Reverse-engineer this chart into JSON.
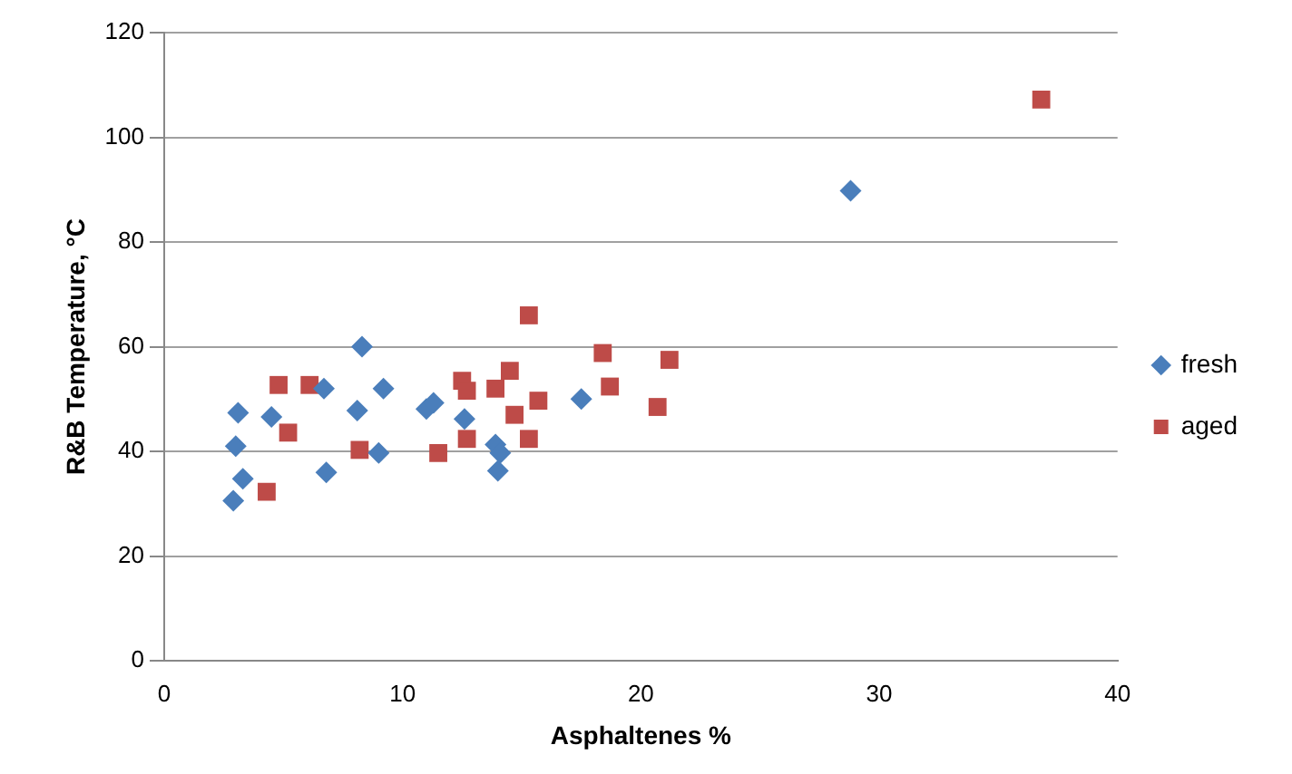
{
  "chart_data": {
    "type": "scatter",
    "xlabel": "Asphaltenes %",
    "ylabel": "R&B Temperature, °C",
    "xlim": [
      0,
      40
    ],
    "xticks": [
      0,
      10,
      20,
      30,
      40
    ],
    "ylim": [
      0,
      120
    ],
    "yticks": [
      0,
      20,
      40,
      60,
      80,
      100,
      120
    ],
    "grid": "y",
    "legend": "right",
    "series": [
      {
        "name": "fresh",
        "color": "#4a7ebb",
        "marker": "diamond",
        "x": [
          2.9,
          3.0,
          3.1,
          3.3,
          4.5,
          6.7,
          6.8,
          8.1,
          8.3,
          9.0,
          9.2,
          11.0,
          11.3,
          12.6,
          13.9,
          14.1,
          14.0,
          17.5,
          28.8
        ],
        "values": [
          30.6,
          41,
          47.4,
          34.8,
          46.6,
          52,
          36,
          47.8,
          60,
          39.7,
          52,
          48.1,
          49.3,
          46.2,
          41.3,
          39.7,
          36.3,
          50,
          89.8
        ]
      },
      {
        "name": "aged",
        "color": "#be4b48",
        "marker": "square",
        "x": [
          4.3,
          4.8,
          5.2,
          6.1,
          8.2,
          11.5,
          12.5,
          12.7,
          12.7,
          13.9,
          14.5,
          14.7,
          15.3,
          15.3,
          15.7,
          18.4,
          18.7,
          20.7,
          21.2,
          36.8
        ],
        "values": [
          32.3,
          52.7,
          43.6,
          52.7,
          40.3,
          39.7,
          53.5,
          51.6,
          42.4,
          52,
          55.4,
          47,
          42.4,
          66,
          49.7,
          58.8,
          52.4,
          48.5,
          57.5,
          107.2
        ]
      }
    ]
  }
}
